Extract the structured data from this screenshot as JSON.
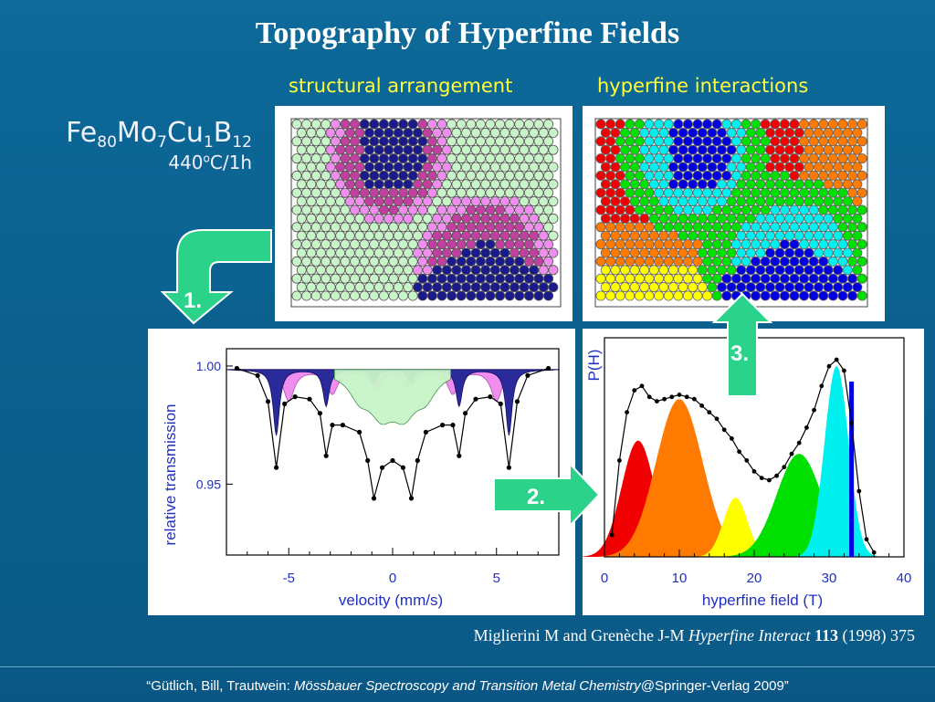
{
  "title": "Topography of Hyperfine Fields",
  "captions": {
    "structural": "structural arrangement",
    "hyperfine": "hyperfine interactions"
  },
  "alloy": {
    "e1": "Fe",
    "s1": "80",
    "e2": "Mo",
    "s2": "7",
    "e3": "Cu",
    "s3": "1",
    "e4": "B",
    "s4": "12",
    "anneal_pre": "440",
    "anneal_sup": "o",
    "anneal_post": "C/1h"
  },
  "steps": {
    "step1": "1.",
    "step2": "2.",
    "step3": "3."
  },
  "colors": {
    "background": "#0b6292",
    "arrow": "#2bd38a",
    "caption": "#ffff3a",
    "dark_blue": "#1a1a8c",
    "magenta": "#c040a0",
    "pink": "#f08ef0",
    "light_green": "#c8f5c8",
    "red": "#f00000",
    "orange": "#ff7a00",
    "yellow": "#ffff00",
    "green": "#00e000",
    "cyan": "#00f0f0",
    "blue": "#0000e0"
  },
  "chart_data": [
    {
      "type": "line",
      "xlabel": "velocity (mm/s)",
      "ylabel": "relative transmission",
      "xlim": [
        -8.0,
        8.0
      ],
      "ylim": [
        0.92,
        1.005
      ],
      "x_ticks": [
        -5,
        0,
        5
      ],
      "y_ticks": [
        0.95,
        1.0
      ],
      "y_tick_labels": [
        "0.95",
        "1.00"
      ],
      "sextet_lines_dark": [
        -5.6,
        -3.2,
        -0.9,
        0.9,
        3.2,
        5.6
      ],
      "sextet_lines_pink": [
        -5.0,
        -2.9,
        -0.8,
        0.8,
        2.9,
        5.0
      ],
      "singlet_center": 0.0,
      "series": [
        {
          "x": [
            -7.5,
            -6.5,
            -6.0,
            -5.6,
            -5.2,
            -4.7,
            -4.0,
            -3.5,
            -3.2,
            -2.9,
            -2.4,
            -1.6,
            -1.2,
            -0.9,
            -0.5,
            0.0,
            0.5,
            0.9,
            1.2,
            1.6,
            2.4,
            2.9,
            3.2,
            3.5,
            4.0,
            4.7,
            5.2,
            5.6,
            6.0,
            6.5,
            7.5
          ],
          "y": [
            0.999,
            0.996,
            0.985,
            0.957,
            0.984,
            0.987,
            0.986,
            0.98,
            0.962,
            0.975,
            0.975,
            0.972,
            0.96,
            0.944,
            0.957,
            0.96,
            0.957,
            0.944,
            0.96,
            0.972,
            0.975,
            0.975,
            0.962,
            0.98,
            0.986,
            0.987,
            0.984,
            0.957,
            0.985,
            0.996,
            0.999
          ]
        }
      ]
    },
    {
      "type": "area",
      "xlabel": "hyperfine field (T)",
      "ylabel": "P(H)",
      "xlim": [
        0,
        40
      ],
      "x_ticks": [
        0,
        10,
        20,
        30,
        40
      ],
      "components": [
        {
          "color": "#f00000",
          "center": 4.5,
          "width": 2.2,
          "height": 0.53
        },
        {
          "color": "#ff7a00",
          "center": 10.0,
          "width": 3.1,
          "height": 0.72
        },
        {
          "color": "#ffff00",
          "center": 17.5,
          "width": 1.6,
          "height": 0.27
        },
        {
          "color": "#00e000",
          "center": 26.0,
          "width": 3.0,
          "height": 0.47
        },
        {
          "color": "#00f0f0",
          "center": 31.0,
          "width": 1.6,
          "height": 0.87
        }
      ],
      "vertical_line_x": 33.0,
      "fit_x": [
        1.0,
        2.0,
        3.0,
        4.0,
        5.0,
        6.0,
        7.0,
        8.0,
        9.0,
        10.0,
        11.0,
        12.0,
        13.0,
        14.0,
        15.0,
        16.0,
        17.0,
        18.0,
        19.0,
        20.0,
        21.0,
        22.0,
        23.0,
        24.0,
        25.0,
        26.0,
        27.0,
        28.0,
        29.0,
        30.0,
        31.0,
        32.0,
        33.0,
        34.0,
        35.0,
        36.0
      ],
      "fit_y": [
        0.1,
        0.44,
        0.66,
        0.76,
        0.78,
        0.73,
        0.71,
        0.72,
        0.73,
        0.74,
        0.73,
        0.72,
        0.69,
        0.66,
        0.63,
        0.58,
        0.54,
        0.48,
        0.44,
        0.39,
        0.36,
        0.35,
        0.37,
        0.41,
        0.47,
        0.52,
        0.59,
        0.67,
        0.78,
        0.87,
        0.9,
        0.85,
        0.61,
        0.3,
        0.08,
        0.02
      ]
    }
  ],
  "reference": {
    "authors": "Miglierini M and Grenèche J-M ",
    "journal": "Hyperfine Interact",
    "volume": "113",
    "rest": " (1998) 375"
  },
  "footer": {
    "pre": "“Gütlich, Bill, Trautwein: ",
    "book": "Mössbauer Spectroscopy and Transition Metal Chemistry",
    "post": "@Springer-Verlag 2009”"
  }
}
